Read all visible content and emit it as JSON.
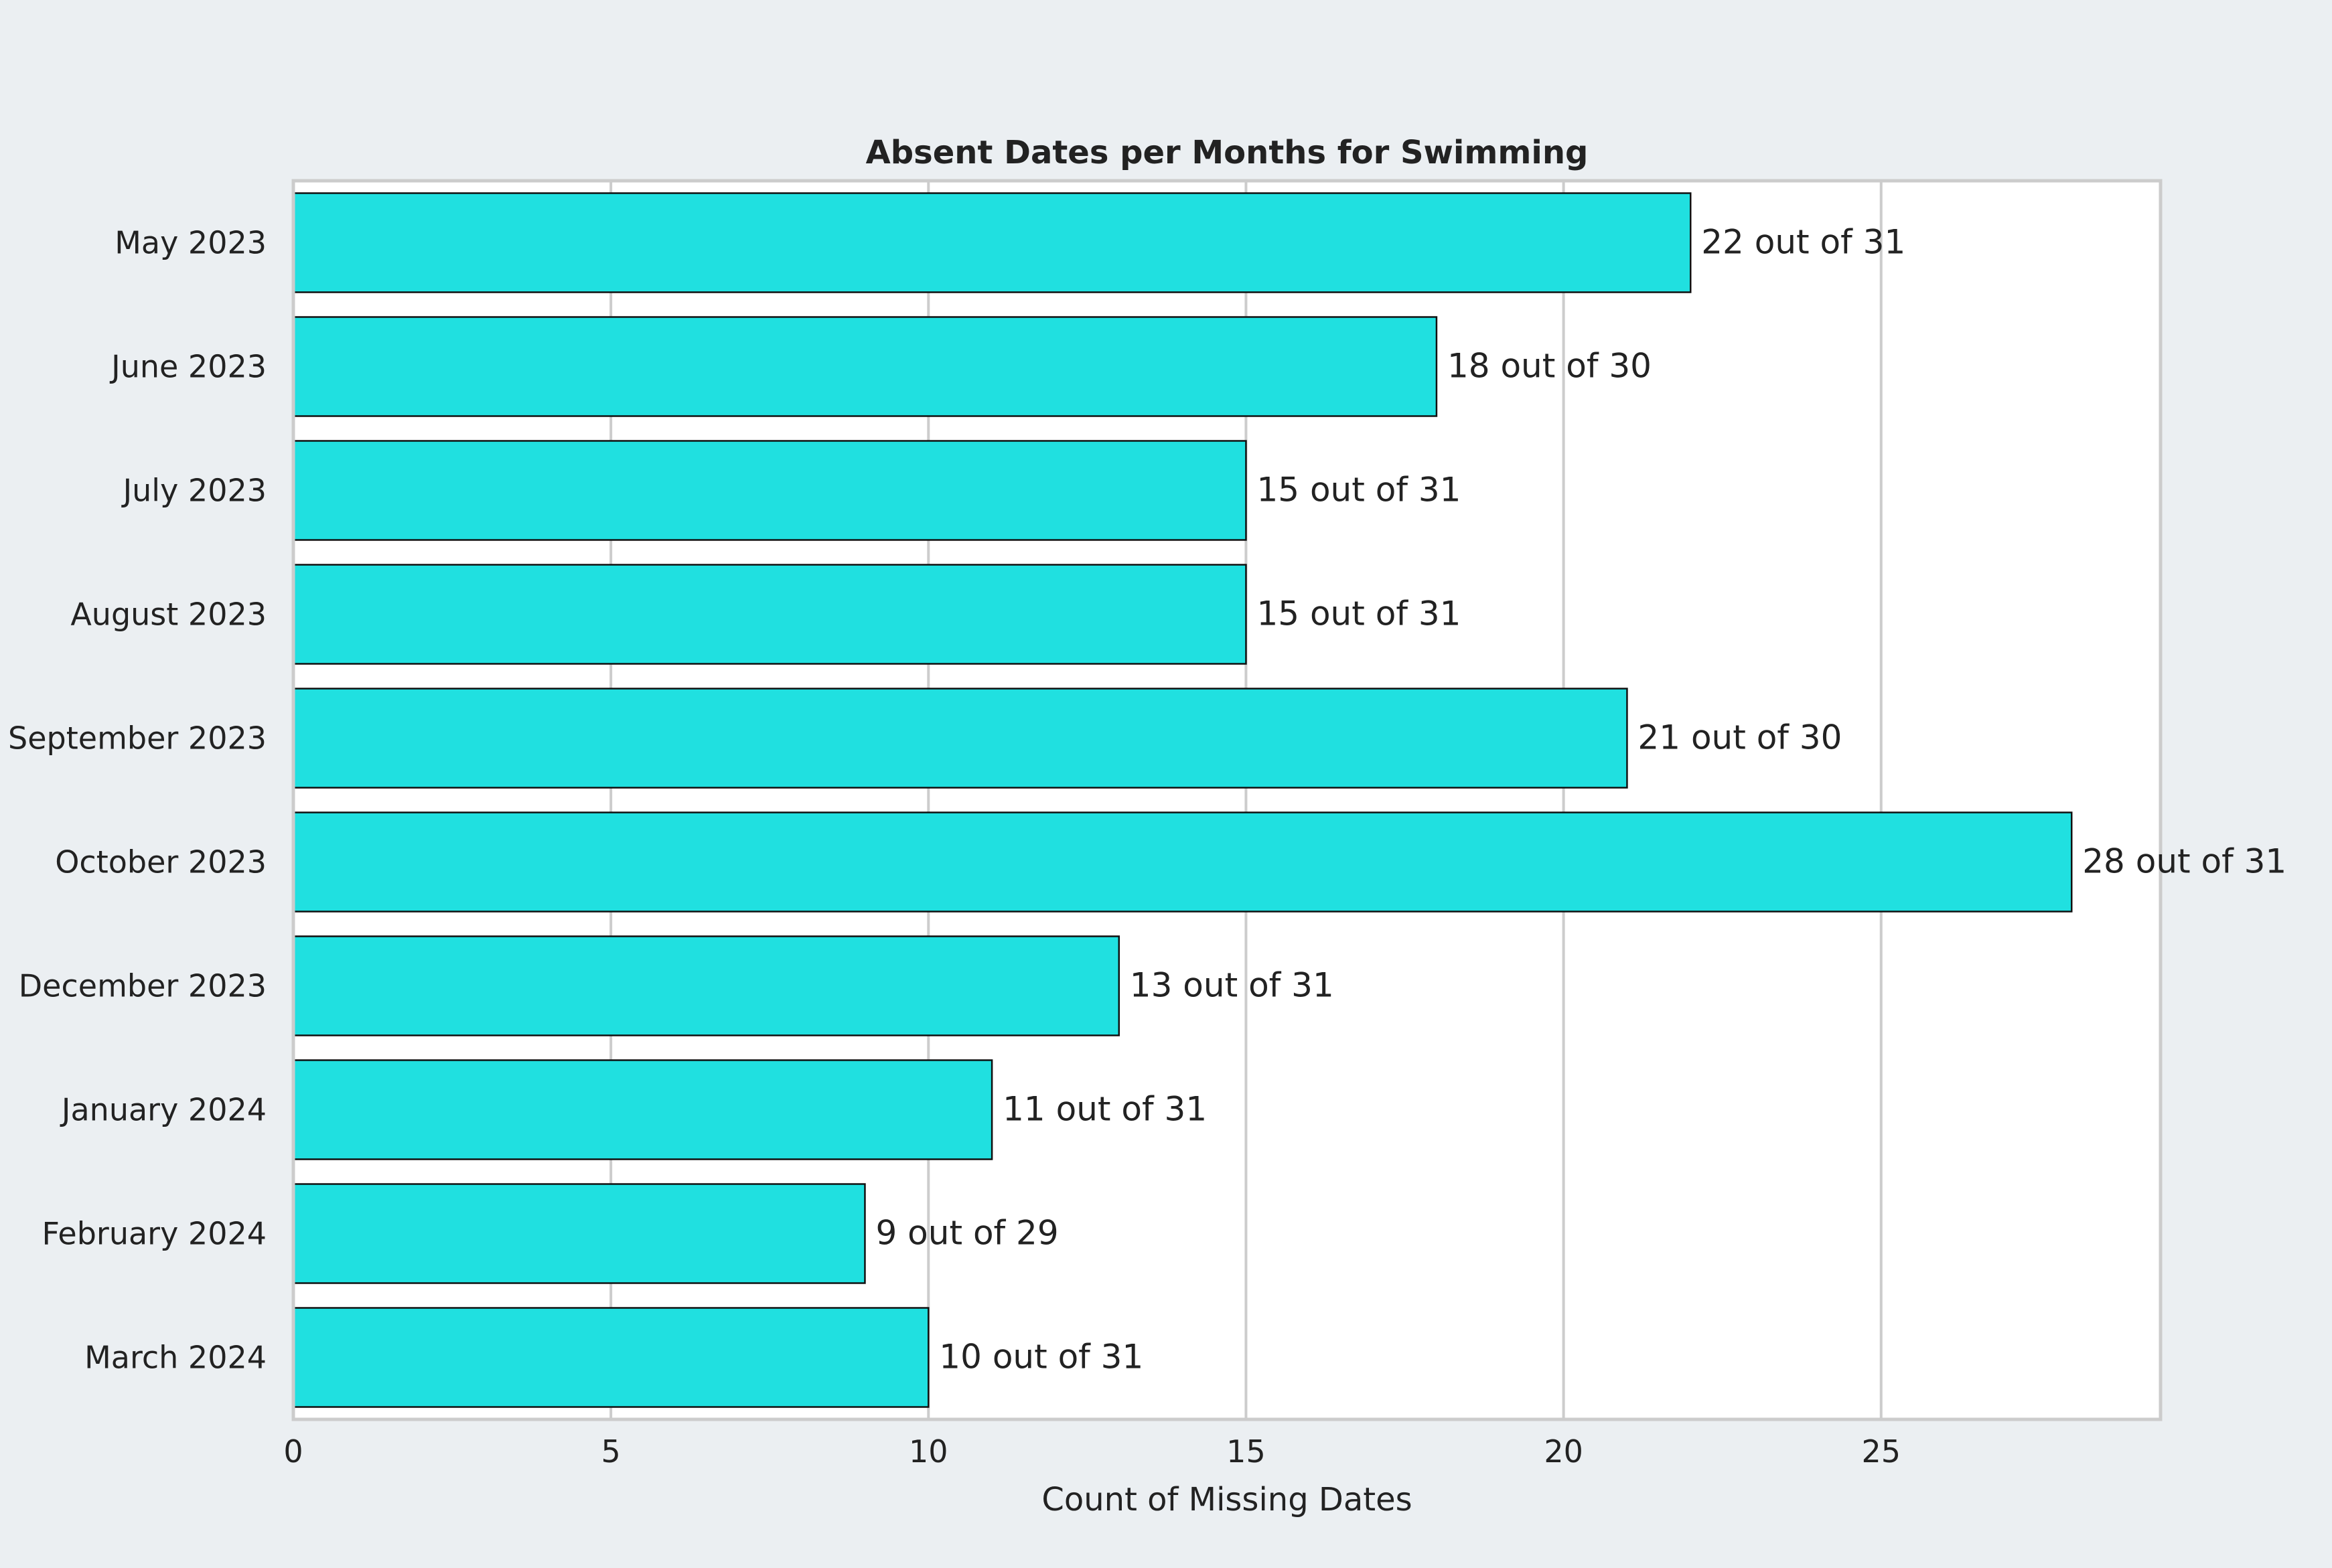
{
  "chart_data": {
    "type": "bar",
    "orientation": "horizontal",
    "title": "Absent Dates per Months for Swimming",
    "xlabel": "Count of Missing Dates",
    "ylabel": "",
    "categories": [
      "May 2023",
      "June 2023",
      "July 2023",
      "August 2023",
      "September 2023",
      "October 2023",
      "December 2023",
      "January 2024",
      "February 2024",
      "March 2024"
    ],
    "values": [
      22,
      18,
      15,
      15,
      21,
      28,
      13,
      11,
      9,
      10
    ],
    "data_labels": [
      "22 out of 31",
      "18 out of 30",
      "15 out of 31",
      "15 out of 31",
      "21 out of 30",
      "28 out of 31",
      "13 out of 31",
      "11 out of 31",
      "9 out of 29",
      "10 out of 31"
    ],
    "xlim": [
      0,
      29.4
    ],
    "xticks": [
      0,
      5,
      10,
      15,
      20,
      25
    ],
    "grid": "vertical",
    "colors": {
      "bar": "#20e0e0",
      "bar_edge": "#111111",
      "plot_bg": "#ffffff",
      "page_bg": "#ebeff2",
      "grid": "#cccccc",
      "frame": "#cccccc"
    }
  }
}
